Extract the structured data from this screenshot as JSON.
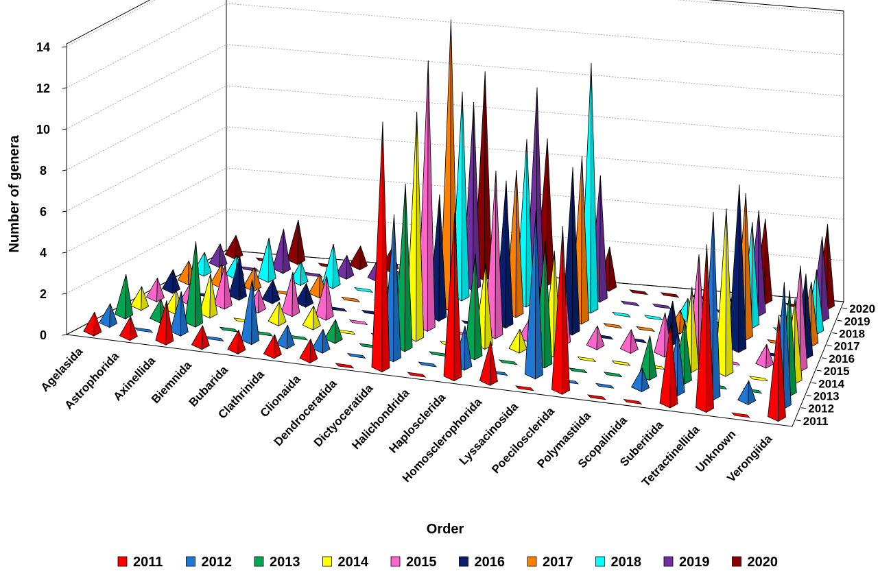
{
  "chart_data": {
    "type": "bar",
    "subtype": "3d-pyramid",
    "title": "",
    "ylabel": "Number of genera",
    "xlabel": "Order",
    "ylim": [
      0,
      14
    ],
    "yticks": [
      0,
      2,
      4,
      6,
      8,
      10,
      12,
      14
    ],
    "grid": true,
    "legend_position": "bottom",
    "categories": [
      "Agelasida",
      "Astrophorida",
      "Axinellida",
      "Biemnida",
      "Bubarida",
      "Clathrinida",
      "Clionaida",
      "Dendroceratida",
      "Dictyoceratida",
      "Halichondrida",
      "Haplosclerida",
      "Homosclerophorida",
      "Lyssacinosida",
      "Poecilosclerida",
      "Polymastiida",
      "Scopalinida",
      "Suberitida",
      "Tetractinellida",
      "Unknown",
      "Verongiida"
    ],
    "series": [
      {
        "name": "2011",
        "color": "#ff0000",
        "values": [
          1,
          1,
          2,
          1,
          1,
          1,
          1,
          0,
          12,
          0,
          8,
          2,
          0,
          8,
          0,
          0,
          4,
          8,
          0,
          5
        ]
      },
      {
        "name": "2012",
        "color": "#1f77d4",
        "values": [
          1,
          0,
          2,
          0,
          3,
          1,
          1,
          0,
          7,
          0,
          2,
          0,
          8,
          0,
          0,
          1,
          3,
          9,
          1,
          6
        ]
      },
      {
        "name": "2013",
        "color": "#00a651",
        "values": [
          2,
          1,
          4,
          0,
          0,
          0,
          1,
          0,
          8,
          0,
          5,
          0,
          6,
          0,
          0,
          2,
          3,
          0,
          0,
          5
        ]
      },
      {
        "name": "2014",
        "color": "#ffff00",
        "values": [
          1,
          1,
          2,
          0,
          1,
          1,
          0,
          0,
          11,
          0,
          4,
          1,
          5,
          0,
          0,
          0,
          4,
          8,
          0,
          4
        ]
      },
      {
        "name": "2015",
        "color": "#ff66cc",
        "values": [
          1,
          1,
          2,
          1,
          2,
          2,
          0,
          1,
          13,
          0,
          8,
          1,
          4,
          1,
          1,
          2,
          5,
          0,
          1,
          5
        ]
      },
      {
        "name": "2016",
        "color": "#0a1f6b",
        "values": [
          1,
          0,
          2,
          1,
          1,
          0,
          0,
          1,
          6,
          0,
          7,
          2,
          8,
          0,
          0,
          2,
          0,
          8,
          0,
          4
        ]
      },
      {
        "name": "2017",
        "color": "#ff7f00",
        "values": [
          1,
          1,
          1,
          0,
          1,
          0,
          1,
          0,
          14,
          0,
          7,
          0,
          8,
          0,
          0,
          1,
          0,
          7,
          0,
          3
        ]
      },
      {
        "name": "2018",
        "color": "#00ffff",
        "values": [
          1,
          1,
          2,
          1,
          2,
          0,
          1,
          0,
          10,
          0,
          8,
          0,
          12,
          0,
          0,
          1,
          0,
          5,
          0,
          3
        ]
      },
      {
        "name": "2019",
        "color": "#7030a0",
        "values": [
          1,
          0,
          2,
          0,
          1,
          1,
          0,
          0,
          9,
          0,
          10,
          0,
          6,
          0,
          0,
          0,
          0,
          5,
          0,
          4
        ]
      },
      {
        "name": "2020",
        "color": "#8b0000",
        "values": [
          1,
          0,
          2,
          0,
          1,
          1,
          0,
          0,
          10,
          0,
          7,
          0,
          2,
          0,
          0,
          0,
          0,
          4,
          0,
          4
        ]
      }
    ]
  },
  "legend": {
    "items": [
      {
        "label": "2011",
        "color": "#ff0000"
      },
      {
        "label": "2012",
        "color": "#1f77d4"
      },
      {
        "label": "2013",
        "color": "#00a651"
      },
      {
        "label": "2014",
        "color": "#ffff00"
      },
      {
        "label": "2015",
        "color": "#ff66cc"
      },
      {
        "label": "2016",
        "color": "#0a1f6b"
      },
      {
        "label": "2017",
        "color": "#ff7f00"
      },
      {
        "label": "2018",
        "color": "#00ffff"
      },
      {
        "label": "2019",
        "color": "#7030a0"
      },
      {
        "label": "2020",
        "color": "#8b0000"
      }
    ]
  }
}
